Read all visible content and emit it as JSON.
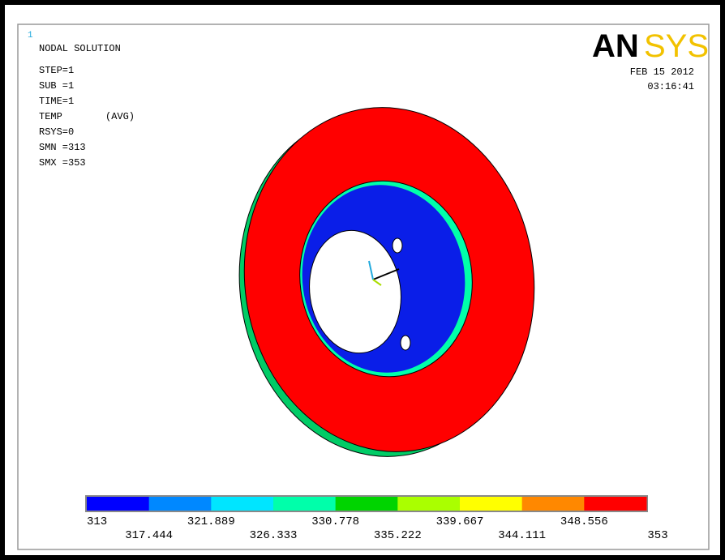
{
  "header": {
    "window_number": "1",
    "title": "NODAL SOLUTION",
    "info": [
      "STEP=1",
      "SUB =1",
      "TIME=1",
      "TEMP",
      "RSYS=0",
      "SMN =313",
      "SMX =353"
    ],
    "avg": "(AVG)",
    "logo": {
      "first": "AN",
      "second": "SYS"
    },
    "date": "FEB 15 2012",
    "time": "03:16:41"
  },
  "legend": {
    "colors": [
      "#0000ff",
      "#0088ff",
      "#00e5ff",
      "#00ffaa",
      "#00d400",
      "#aaff00",
      "#ffff00",
      "#ff8800",
      "#ff0000"
    ],
    "labels": [
      "313",
      "317.444",
      "321.889",
      "326.333",
      "330.778",
      "335.222",
      "339.667",
      "344.111",
      "348.556",
      "353"
    ]
  }
}
